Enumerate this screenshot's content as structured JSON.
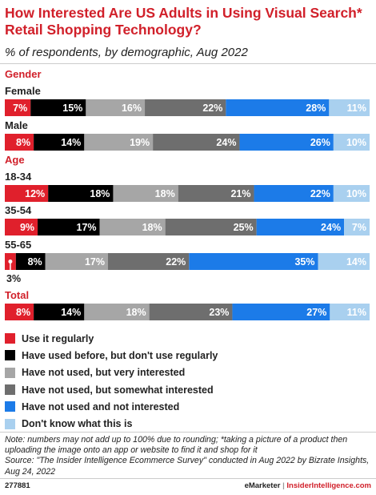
{
  "chart_data": {
    "type": "bar",
    "title": "How Interested Are US Adults in Using Visual Search* Retail Shopping Technology?",
    "subtitle": "% of respondents, by demographic, Aug 2022",
    "orientation": "horizontal",
    "stacked": true,
    "unit": "%",
    "xlim": [
      0,
      100
    ],
    "groups": [
      {
        "name": "Gender",
        "categories": [
          "Female",
          "Male"
        ]
      },
      {
        "name": "Age",
        "categories": [
          "18-34",
          "35-54",
          "55-65"
        ]
      },
      {
        "name": "Total",
        "categories": [
          "Total"
        ]
      }
    ],
    "categories": [
      "Female",
      "Male",
      "18-34",
      "35-54",
      "55-65",
      "Total"
    ],
    "series": [
      {
        "name": "Use it regularly",
        "color": "#e0202c",
        "values": [
          7,
          8,
          12,
          9,
          3,
          8
        ]
      },
      {
        "name": "Have used before, but don't use regularly",
        "color": "#000000",
        "values": [
          15,
          14,
          18,
          17,
          8,
          14
        ]
      },
      {
        "name": "Have not used, but very interested",
        "color": "#a6a6a6",
        "values": [
          16,
          19,
          18,
          18,
          17,
          18
        ]
      },
      {
        "name": "Have not used, but somewhat interested",
        "color": "#6e6e6e",
        "values": [
          22,
          24,
          21,
          25,
          22,
          23
        ]
      },
      {
        "name": "Have not used and not interested",
        "color": "#1c7be8",
        "values": [
          28,
          26,
          22,
          24,
          35,
          27
        ]
      },
      {
        "name": "Don't know what this is",
        "color": "#a9d0ef",
        "values": [
          11,
          10,
          10,
          7,
          14,
          11
        ]
      }
    ],
    "grid": false,
    "legend": "bottom-left"
  },
  "note": "Note: numbers may not add up to 100% due to rounding; *taking a picture of a product then uploading the image onto an app or website to find it and shop for it",
  "source": "Source: \"The Insider Intelligence Ecommerce Survey\" conducted in Aug 2022 by Bizrate Insights, Aug 24, 2022",
  "footer": {
    "chart_id": "277881",
    "brand_emarketer": "eMarketer",
    "brand_separator": "|",
    "brand_ii": "InsiderIntelligence.com"
  }
}
